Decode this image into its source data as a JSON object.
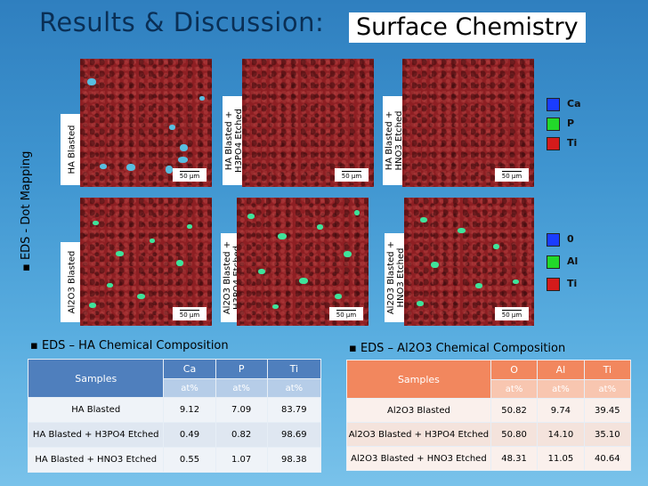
{
  "header": {
    "title": "Results & Discussion:",
    "subtitle": "Surface Chemistry"
  },
  "side_label": "▪ EDS - Dot Mapping",
  "scale_bar": "50 µm",
  "row1_labels": [
    "HA Blasted",
    "HA Blasted +\nH3PO4 Etched",
    "HA Blasted +\nHNO3 Etched"
  ],
  "row2_labels": [
    "Al2O3 Blasted",
    "Al2O3 Blasted +\nH3PO4 Etched",
    "Al2O3 Blasted +\nHNO3 Etched"
  ],
  "legend1": [
    {
      "label": "Ca",
      "color": "#1a3cff"
    },
    {
      "label": "P",
      "color": "#22d92a"
    },
    {
      "label": "Ti",
      "color": "#d41b1b"
    }
  ],
  "legend2": [
    {
      "label": "0",
      "color": "#1a3cff"
    },
    {
      "label": "Al",
      "color": "#22d92a"
    },
    {
      "label": "Ti",
      "color": "#d41b1b"
    }
  ],
  "section1_title": "▪ EDS –  HA Chemical Composition",
  "section2_title": "▪ EDS –  Al2O3 Chemical Composition",
  "table1": {
    "samples_header": "Samples",
    "columns": [
      "Ca",
      "P",
      "Ti"
    ],
    "units": [
      "at%",
      "at%",
      "at%"
    ],
    "rows": [
      {
        "sample": "HA Blasted",
        "values": [
          "9.12",
          "7.09",
          "83.79"
        ]
      },
      {
        "sample": "HA Blasted + H3PO4 Etched",
        "values": [
          "0.49",
          "0.82",
          "98.69"
        ]
      },
      {
        "sample": "HA Blasted + HNO3 Etched",
        "values": [
          "0.55",
          "1.07",
          "98.38"
        ]
      }
    ]
  },
  "table2": {
    "samples_header": "Samples",
    "columns": [
      "O",
      "Al",
      "Ti"
    ],
    "units": [
      "at%",
      "at%",
      "at%"
    ],
    "rows": [
      {
        "sample": "Al2O3 Blasted",
        "values": [
          "50.82",
          "9.74",
          "39.45"
        ]
      },
      {
        "sample": "Al2O3 Blasted +  H3PO4 Etched",
        "values": [
          "50.80",
          "14.10",
          "35.10"
        ]
      },
      {
        "sample": "Al2O3 Blasted + HNO3 Etched",
        "values": [
          "48.31",
          "11.05",
          "40.64"
        ]
      }
    ]
  }
}
